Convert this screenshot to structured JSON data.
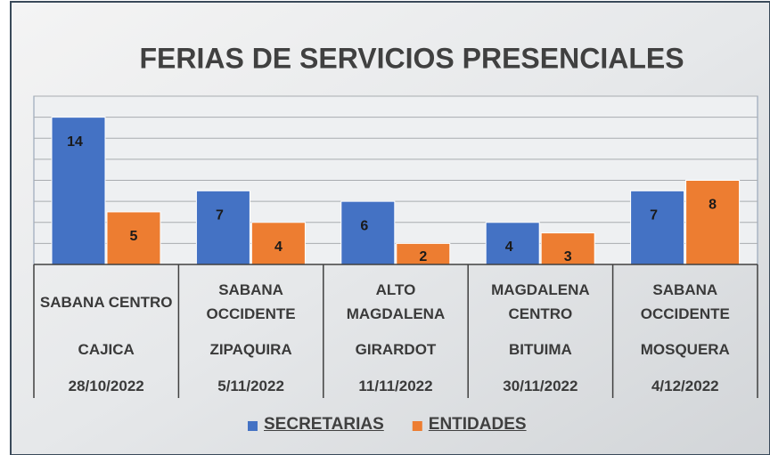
{
  "chart_data": {
    "type": "bar",
    "title": "FERIAS DE SERVICIOS PRESENCIALES",
    "category_levels": [
      [
        "SABANA CENTRO",
        "SABANA OCCIDENTE",
        "ALTO MAGDALENA",
        "MAGDALENA CENTRO",
        "SABANA OCCIDENTE"
      ],
      [
        "CAJICA",
        "ZIPAQUIRA",
        "GIRARDOT",
        "BITUIMA",
        "MOSQUERA"
      ],
      [
        "28/10/2022",
        "5/11/2022",
        "11/11/2022",
        "30/11/2022",
        "4/12/2022"
      ]
    ],
    "series": [
      {
        "name": "SECRETARIAS",
        "color": "#4472c4",
        "values": [
          14,
          7,
          6,
          4,
          7
        ]
      },
      {
        "name": "ENTIDADES",
        "color": "#ed7d31",
        "values": [
          5,
          4,
          2,
          3,
          8
        ]
      }
    ],
    "ylim": [
      0,
      16
    ],
    "yticks": [
      0,
      2,
      4,
      6,
      8,
      10,
      12,
      14,
      16
    ],
    "grid": true,
    "legend": "bottom"
  }
}
